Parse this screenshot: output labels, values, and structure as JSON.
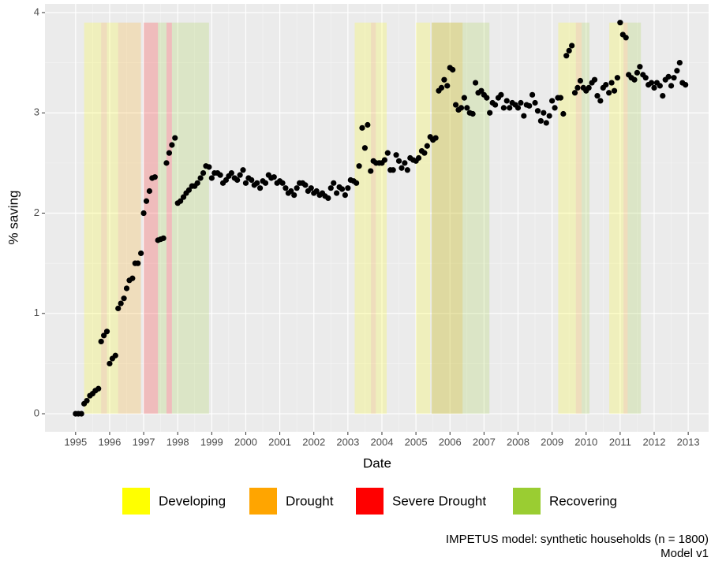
{
  "chart_data": {
    "type": "scatter",
    "x_label": "Date",
    "y_label": "% saving",
    "caption": [
      "IMPETUS model: synthetic households (n = 1800)",
      "Model v1"
    ],
    "xlim": [
      1994.1,
      2013.6
    ],
    "ylim": [
      -0.18,
      4.086
    ],
    "xticks": [
      1995,
      1996,
      1997,
      1998,
      1999,
      2000,
      2001,
      2002,
      2003,
      2004,
      2005,
      2006,
      2007,
      2008,
      2009,
      2010,
      2011,
      2012,
      2013
    ],
    "yticks": [
      0,
      1,
      2,
      3,
      4
    ],
    "grid": true,
    "point_color": "#000000",
    "legend": [
      {
        "name": "Developing",
        "color": "#ffff00"
      },
      {
        "name": "Drought",
        "color": "#ffa500"
      },
      {
        "name": "Severe Drought",
        "color": "#ff0000"
      },
      {
        "name": "Recovering",
        "color": "#9acd32"
      }
    ],
    "region_ylim": [
      0,
      3.9
    ],
    "regions": [
      {
        "x0": 1995.25,
        "x1": 1995.75,
        "phase": 0
      },
      {
        "x0": 1995.75,
        "x1": 1995.92,
        "phase": 1
      },
      {
        "x0": 1995.92,
        "x1": 1996.25,
        "phase": 0
      },
      {
        "x0": 1996.25,
        "x1": 1996.92,
        "phase": 1
      },
      {
        "x0": 1997.0,
        "x1": 1997.42,
        "phase": 2
      },
      {
        "x0": 1997.42,
        "x1": 1997.67,
        "phase": 3
      },
      {
        "x0": 1997.67,
        "x1": 1997.83,
        "phase": 2
      },
      {
        "x0": 1997.83,
        "x1": 1998.92,
        "phase": 3
      },
      {
        "x0": 2003.2,
        "x1": 2003.68,
        "phase": 0
      },
      {
        "x0": 2003.68,
        "x1": 2003.82,
        "phase": 1
      },
      {
        "x0": 2003.82,
        "x1": 2004.14,
        "phase": 0
      },
      {
        "x0": 2005.0,
        "x1": 2005.42,
        "phase": 0
      },
      {
        "x0": 2005.46,
        "x1": 2006.37,
        "phase": 1
      },
      {
        "x0": 2005.46,
        "x1": 2007.16,
        "phase": 3
      },
      {
        "x0": 2009.18,
        "x1": 2009.7,
        "phase": 0
      },
      {
        "x0": 2009.7,
        "x1": 2009.87,
        "phase": 1
      },
      {
        "x0": 2009.87,
        "x1": 2010.1,
        "phase": 3
      },
      {
        "x0": 2010.68,
        "x1": 2011.1,
        "phase": 0
      },
      {
        "x0": 2011.1,
        "x1": 2011.22,
        "phase": 1
      },
      {
        "x0": 2011.22,
        "x1": 2011.61,
        "phase": 3
      }
    ],
    "x": [
      1995,
      1995.08,
      1995.17,
      1995.25,
      1995.33,
      1995.42,
      1995.5,
      1995.58,
      1995.67,
      1995.75,
      1995.83,
      1995.92,
      1996,
      1996.08,
      1996.17,
      1996.25,
      1996.33,
      1996.42,
      1996.5,
      1996.58,
      1996.67,
      1996.75,
      1996.83,
      1996.92,
      1997,
      1997.08,
      1997.17,
      1997.25,
      1997.33,
      1997.42,
      1997.5,
      1997.58,
      1997.67,
      1997.75,
      1997.83,
      1997.92,
      1998,
      1998.08,
      1998.17,
      1998.25,
      1998.33,
      1998.42,
      1998.5,
      1998.58,
      1998.67,
      1998.75,
      1998.83,
      1998.92,
      1999,
      1999.08,
      1999.17,
      1999.25,
      1999.33,
      1999.42,
      1999.5,
      1999.58,
      1999.67,
      1999.75,
      1999.83,
      1999.92,
      2000,
      2000.08,
      2000.17,
      2000.25,
      2000.33,
      2000.42,
      2000.5,
      2000.58,
      2000.67,
      2000.75,
      2000.83,
      2000.92,
      2001,
      2001.08,
      2001.17,
      2001.25,
      2001.33,
      2001.42,
      2001.5,
      2001.58,
      2001.67,
      2001.75,
      2001.83,
      2001.92,
      2002,
      2002.08,
      2002.17,
      2002.25,
      2002.33,
      2002.42,
      2002.5,
      2002.58,
      2002.67,
      2002.75,
      2002.83,
      2002.92,
      2003,
      2003.08,
      2003.17,
      2003.25,
      2003.33,
      2003.42,
      2003.5,
      2003.58,
      2003.67,
      2003.75,
      2003.83,
      2003.92,
      2004,
      2004.08,
      2004.17,
      2004.25,
      2004.33,
      2004.42,
      2004.5,
      2004.58,
      2004.67,
      2004.75,
      2004.83,
      2004.92,
      2005,
      2005.08,
      2005.17,
      2005.25,
      2005.33,
      2005.42,
      2005.5,
      2005.58,
      2005.67,
      2005.75,
      2005.83,
      2005.92,
      2006,
      2006.08,
      2006.17,
      2006.25,
      2006.33,
      2006.42,
      2006.5,
      2006.58,
      2006.67,
      2006.75,
      2006.83,
      2006.92,
      2007,
      2007.08,
      2007.17,
      2007.25,
      2007.33,
      2007.42,
      2007.5,
      2007.58,
      2007.67,
      2007.75,
      2007.83,
      2007.92,
      2008,
      2008.08,
      2008.17,
      2008.25,
      2008.33,
      2008.42,
      2008.5,
      2008.58,
      2008.67,
      2008.75,
      2008.83,
      2008.92,
      2009,
      2009.08,
      2009.17,
      2009.25,
      2009.33,
      2009.42,
      2009.5,
      2009.58,
      2009.67,
      2009.75,
      2009.83,
      2009.92,
      2010,
      2010.08,
      2010.17,
      2010.25,
      2010.33,
      2010.42,
      2010.5,
      2010.58,
      2010.67,
      2010.75,
      2010.83,
      2010.92,
      2011,
      2011.08,
      2011.17,
      2011.25,
      2011.33,
      2011.42,
      2011.5,
      2011.58,
      2011.67,
      2011.75,
      2011.83,
      2011.92,
      2012,
      2012.08,
      2012.17,
      2012.25,
      2012.33,
      2012.42,
      2012.5,
      2012.58,
      2012.67,
      2012.75,
      2012.83,
      2012.92
    ],
    "values": [
      0,
      0,
      0,
      0.1,
      0.13,
      0.18,
      0.2,
      0.23,
      0.25,
      0.72,
      0.78,
      0.82,
      0.5,
      0.55,
      0.58,
      1.05,
      1.1,
      1.15,
      1.25,
      1.33,
      1.35,
      1.5,
      1.5,
      1.6,
      2.0,
      2.12,
      2.22,
      2.35,
      2.36,
      1.73,
      1.74,
      1.75,
      2.5,
      2.6,
      2.68,
      2.75,
      2.1,
      2.12,
      2.16,
      2.2,
      2.23,
      2.27,
      2.27,
      2.3,
      2.35,
      2.4,
      2.47,
      2.46,
      2.35,
      2.4,
      2.4,
      2.38,
      2.3,
      2.33,
      2.37,
      2.4,
      2.35,
      2.33,
      2.38,
      2.43,
      2.3,
      2.35,
      2.33,
      2.28,
      2.3,
      2.25,
      2.32,
      2.3,
      2.38,
      2.35,
      2.36,
      2.3,
      2.32,
      2.3,
      2.25,
      2.2,
      2.22,
      2.18,
      2.25,
      2.3,
      2.3,
      2.28,
      2.22,
      2.25,
      2.2,
      2.22,
      2.18,
      2.2,
      2.17,
      2.15,
      2.25,
      2.3,
      2.2,
      2.26,
      2.24,
      2.18,
      2.25,
      2.33,
      2.32,
      2.3,
      2.47,
      2.85,
      2.65,
      2.88,
      2.42,
      2.52,
      2.5,
      2.5,
      2.5,
      2.53,
      2.6,
      2.43,
      2.43,
      2.58,
      2.52,
      2.45,
      2.5,
      2.43,
      2.55,
      2.53,
      2.52,
      2.55,
      2.62,
      2.6,
      2.67,
      2.76,
      2.73,
      2.75,
      3.22,
      3.25,
      3.33,
      3.27,
      3.45,
      3.43,
      3.08,
      3.03,
      3.05,
      3.15,
      3.05,
      3.0,
      2.99,
      3.3,
      3.2,
      3.22,
      3.18,
      3.15,
      3.0,
      3.1,
      3.08,
      3.15,
      3.18,
      3.05,
      3.12,
      3.05,
      3.1,
      3.08,
      3.05,
      3.1,
      2.97,
      3.08,
      3.07,
      3.18,
      3.1,
      3.02,
      2.92,
      3.0,
      2.9,
      2.97,
      3.12,
      3.05,
      3.15,
      3.15,
      2.99,
      3.57,
      3.62,
      3.67,
      3.2,
      3.25,
      3.32,
      3.25,
      3.22,
      3.25,
      3.3,
      3.33,
      3.17,
      3.12,
      3.25,
      3.28,
      3.2,
      3.3,
      3.22,
      3.35,
      3.9,
      3.78,
      3.75,
      3.38,
      3.35,
      3.33,
      3.4,
      3.46,
      3.38,
      3.35,
      3.28,
      3.3,
      3.25,
      3.3,
      3.27,
      3.17,
      3.33,
      3.36,
      3.27,
      3.35,
      3.42,
      3.5,
      3.3,
      3.28
    ]
  }
}
